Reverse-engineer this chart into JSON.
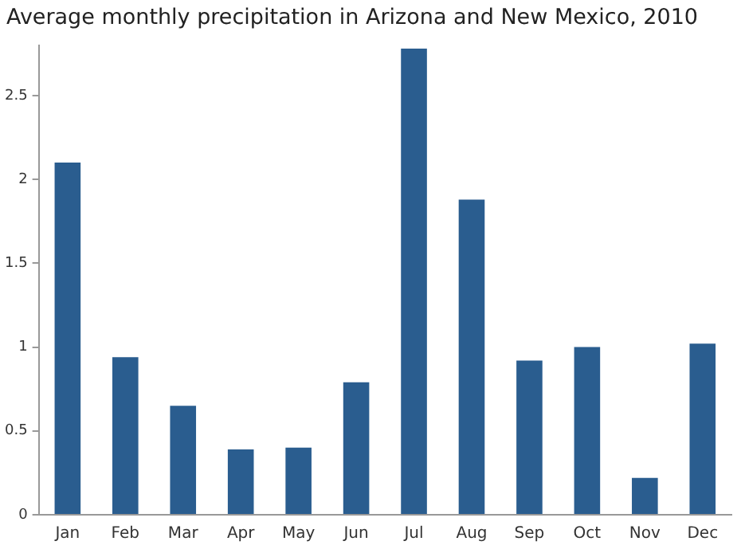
{
  "chart_data": {
    "type": "bar",
    "title": "Average monthly precipitation in Arizona and New Mexico, 2010",
    "categories": [
      "Jan",
      "Feb",
      "Mar",
      "Apr",
      "May",
      "Jun",
      "Jul",
      "Aug",
      "Sep",
      "Oct",
      "Nov",
      "Dec"
    ],
    "values": [
      2.1,
      0.94,
      0.65,
      0.39,
      0.4,
      0.79,
      2.78,
      1.88,
      0.92,
      1.0,
      0.22,
      1.02
    ],
    "color": "#2a5d8f",
    "ylim": [
      0,
      2.8
    ],
    "yticks": [
      0,
      {
        "value": 0.5,
        "label": "0.5"
      },
      1,
      {
        "value": 1.5,
        "label": "1.5"
      },
      2,
      {
        "value": 2.5,
        "label": "2.5"
      }
    ],
    "grid": false,
    "legend": false
  }
}
